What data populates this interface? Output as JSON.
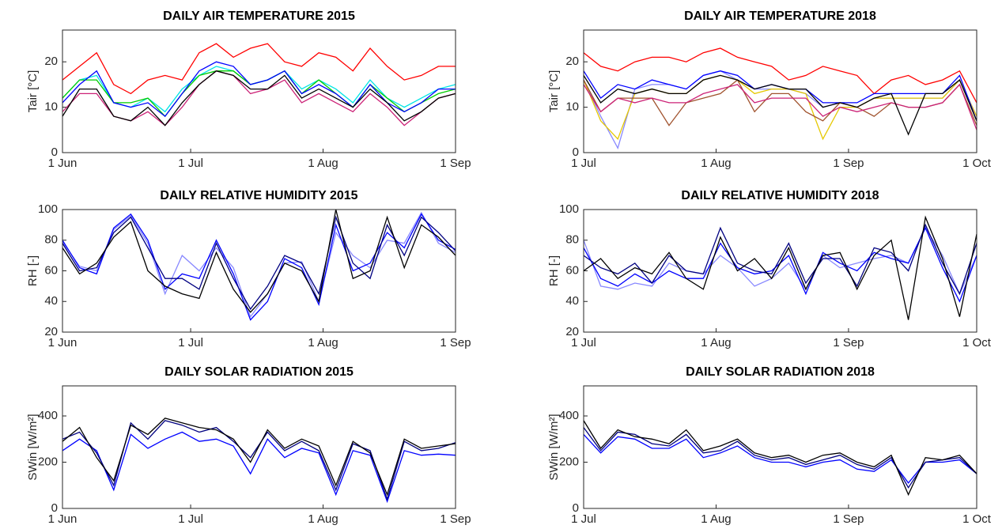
{
  "chart_data": [
    {
      "type": "line",
      "title": "DAILY AIR TEMPERATURE 2015",
      "ylabel": "Tair [°C]",
      "x": [
        0,
        4,
        8,
        12,
        16,
        20,
        24,
        28,
        32,
        36,
        40,
        44,
        48,
        52,
        56,
        60,
        64,
        68,
        72,
        76,
        80,
        84,
        88,
        92
      ],
      "xlim": [
        0,
        92
      ],
      "xticks": [
        {
          "value": 0,
          "label": "1 Jun"
        },
        {
          "value": 30,
          "label": "1 Jul"
        },
        {
          "value": 61,
          "label": "1 Aug"
        },
        {
          "value": 92,
          "label": "1 Sep"
        }
      ],
      "ylim": [
        0,
        27
      ],
      "yticks": [
        0,
        10,
        20
      ],
      "series": [
        {
          "color": "#ff0000",
          "values": [
            16,
            19,
            22,
            15,
            13,
            16,
            17,
            16,
            22,
            24,
            21,
            23,
            24,
            20,
            19,
            22,
            21,
            18,
            23,
            19,
            16,
            17,
            19,
            19
          ]
        },
        {
          "color": "#00e5e5",
          "values": [
            12,
            16,
            17,
            11,
            10,
            12,
            9,
            14,
            17,
            19,
            18,
            15,
            16,
            18,
            14,
            16,
            14,
            11,
            16,
            12,
            10,
            12,
            14,
            15
          ]
        },
        {
          "color": "#00cc00",
          "values": [
            12,
            16,
            16,
            11,
            11,
            12,
            8,
            13,
            17,
            18,
            18,
            15,
            16,
            18,
            13,
            16,
            13,
            10,
            15,
            12,
            9,
            11,
            13,
            14
          ]
        },
        {
          "color": "#0000ff",
          "values": [
            11,
            15,
            18,
            11,
            10,
            11,
            8,
            13,
            18,
            20,
            19,
            15,
            16,
            18,
            13,
            15,
            13,
            10,
            15,
            11,
            9,
            11,
            14,
            14
          ]
        },
        {
          "color": "#cc2277",
          "values": [
            9,
            13,
            13,
            8,
            7,
            9,
            6,
            10,
            15,
            18,
            17,
            13,
            14,
            16,
            11,
            13,
            11,
            9,
            13,
            10,
            6,
            9,
            12,
            13
          ]
        },
        {
          "color": "#000000",
          "values": [
            8,
            14,
            14,
            8,
            7,
            10,
            6,
            11,
            15,
            18,
            17,
            14,
            14,
            17,
            12,
            14,
            12,
            10,
            14,
            11,
            7,
            9,
            12,
            13
          ]
        }
      ]
    },
    {
      "type": "line",
      "title": "DAILY AIR TEMPERATURE 2018",
      "ylabel": "Tair [°C]",
      "x": [
        0,
        4,
        8,
        12,
        16,
        20,
        24,
        28,
        32,
        36,
        40,
        44,
        48,
        52,
        56,
        60,
        64,
        68,
        72,
        76,
        80,
        84,
        88,
        92
      ],
      "xlim": [
        0,
        92
      ],
      "xticks": [
        {
          "value": 0,
          "label": "1 Jul"
        },
        {
          "value": 31,
          "label": "1 Aug"
        },
        {
          "value": 62,
          "label": "1 Sep"
        },
        {
          "value": 92,
          "label": "1 Oct"
        }
      ],
      "ylim": [
        0,
        27
      ],
      "yticks": [
        0,
        10,
        20
      ],
      "series": [
        {
          "color": "#ff0000",
          "values": [
            22,
            19,
            18,
            20,
            21,
            21,
            20,
            22,
            23,
            21,
            20,
            19,
            16,
            17,
            19,
            18,
            17,
            13,
            16,
            17,
            15,
            16,
            18,
            11
          ]
        },
        {
          "color": "#8888ff",
          "values": [
            16,
            8,
            1,
            14,
            15,
            15,
            14,
            17,
            18,
            16,
            14,
            14,
            14,
            13,
            10,
            11,
            10,
            12,
            12,
            12,
            12,
            12,
            16,
            8
          ]
        },
        {
          "color": "#e5c800",
          "values": [
            16,
            7,
            3,
            13,
            14,
            13,
            13,
            16,
            17,
            16,
            13,
            14,
            14,
            13,
            3,
            10,
            10,
            12,
            12,
            12,
            12,
            12,
            16,
            8
          ]
        },
        {
          "color": "#a0522d",
          "values": [
            16,
            9,
            12,
            12,
            12,
            6,
            11,
            12,
            13,
            16,
            9,
            13,
            13,
            9,
            7,
            11,
            10,
            8,
            11,
            10,
            10,
            11,
            15,
            6
          ]
        },
        {
          "color": "#cc2277",
          "values": [
            15,
            9,
            12,
            11,
            12,
            11,
            11,
            13,
            14,
            15,
            11,
            12,
            12,
            12,
            8,
            10,
            9,
            10,
            11,
            10,
            10,
            11,
            15,
            5
          ]
        },
        {
          "color": "#0000ff",
          "values": [
            18,
            12,
            15,
            14,
            16,
            15,
            14,
            17,
            18,
            17,
            14,
            15,
            14,
            14,
            11,
            11,
            11,
            13,
            13,
            13,
            13,
            13,
            17,
            7
          ]
        },
        {
          "color": "#000000",
          "values": [
            17,
            11,
            14,
            13,
            14,
            13,
            13,
            16,
            17,
            16,
            14,
            15,
            14,
            14,
            10,
            11,
            10,
            12,
            13,
            4,
            13,
            13,
            16,
            7
          ]
        }
      ]
    },
    {
      "type": "line",
      "title": "DAILY RELATIVE HUMIDITY 2015",
      "ylabel": "RH [-]",
      "x": [
        0,
        4,
        8,
        12,
        16,
        20,
        24,
        28,
        32,
        36,
        40,
        44,
        48,
        52,
        56,
        60,
        64,
        68,
        72,
        76,
        80,
        84,
        88,
        92
      ],
      "xlim": [
        0,
        92
      ],
      "xticks": [
        {
          "value": 0,
          "label": "1 Jun"
        },
        {
          "value": 30,
          "label": "1 Jul"
        },
        {
          "value": 61,
          "label": "1 Aug"
        },
        {
          "value": 92,
          "label": "1 Sep"
        }
      ],
      "ylim": [
        20,
        100
      ],
      "yticks": [
        20,
        40,
        60,
        80,
        100
      ],
      "series": [
        {
          "color": "#8888ff",
          "values": [
            79,
            63,
            60,
            87,
            96,
            78,
            45,
            70,
            60,
            75,
            62,
            30,
            45,
            65,
            66,
            40,
            85,
            70,
            62,
            80,
            78,
            98,
            78,
            72
          ]
        },
        {
          "color": "#0000ff",
          "values": [
            80,
            62,
            58,
            88,
            97,
            80,
            48,
            58,
            55,
            80,
            58,
            28,
            40,
            68,
            62,
            38,
            90,
            60,
            65,
            85,
            75,
            97,
            80,
            74
          ]
        },
        {
          "color": "#000080",
          "values": [
            78,
            60,
            62,
            85,
            95,
            75,
            55,
            55,
            48,
            78,
            55,
            35,
            50,
            70,
            65,
            45,
            95,
            65,
            55,
            90,
            70,
            95,
            85,
            73
          ]
        },
        {
          "color": "#000000",
          "values": [
            75,
            58,
            65,
            82,
            92,
            60,
            50,
            45,
            42,
            72,
            48,
            33,
            45,
            65,
            60,
            40,
            100,
            55,
            60,
            95,
            62,
            90,
            82,
            70
          ]
        }
      ]
    },
    {
      "type": "line",
      "title": "DAILY RELATIVE HUMIDITY 2018",
      "ylabel": "RH [-]",
      "x": [
        0,
        4,
        8,
        12,
        16,
        20,
        24,
        28,
        32,
        36,
        40,
        44,
        48,
        52,
        56,
        60,
        64,
        68,
        72,
        76,
        80,
        84,
        88,
        92
      ],
      "xlim": [
        0,
        92
      ],
      "xticks": [
        {
          "value": 0,
          "label": "1 Jul"
        },
        {
          "value": 31,
          "label": "1 Aug"
        },
        {
          "value": 62,
          "label": "1 Sep"
        },
        {
          "value": 92,
          "label": "1 Oct"
        }
      ],
      "ylim": [
        20,
        100
      ],
      "yticks": [
        20,
        40,
        60,
        80,
        100
      ],
      "series": [
        {
          "color": "#8888ff",
          "values": [
            80,
            50,
            48,
            52,
            50,
            65,
            60,
            58,
            70,
            62,
            50,
            55,
            65,
            48,
            70,
            62,
            65,
            68,
            70,
            65,
            88,
            70,
            45,
            70
          ]
        },
        {
          "color": "#0000ff",
          "values": [
            75,
            55,
            50,
            58,
            52,
            60,
            55,
            55,
            78,
            62,
            58,
            60,
            70,
            45,
            72,
            65,
            60,
            72,
            68,
            65,
            88,
            62,
            40,
            70
          ]
        },
        {
          "color": "#000080",
          "values": [
            70,
            62,
            58,
            65,
            52,
            70,
            60,
            58,
            88,
            65,
            60,
            58,
            78,
            52,
            68,
            68,
            50,
            75,
            72,
            60,
            90,
            65,
            45,
            78
          ]
        },
        {
          "color": "#000000",
          "values": [
            60,
            68,
            55,
            62,
            58,
            72,
            55,
            48,
            82,
            60,
            68,
            55,
            75,
            48,
            70,
            72,
            48,
            70,
            80,
            28,
            95,
            68,
            30,
            84
          ]
        }
      ]
    },
    {
      "type": "line",
      "title": "DAILY SOLAR RADIATION 2015",
      "ylabel": "SWin [W/m²]",
      "x": [
        0,
        4,
        8,
        12,
        16,
        20,
        24,
        28,
        32,
        36,
        40,
        44,
        48,
        52,
        56,
        60,
        64,
        68,
        72,
        76,
        80,
        84,
        88,
        92
      ],
      "xlim": [
        0,
        92
      ],
      "xticks": [
        {
          "value": 0,
          "label": "1 Jun"
        },
        {
          "value": 30,
          "label": "1 Jul"
        },
        {
          "value": 61,
          "label": "1 Aug"
        },
        {
          "value": 92,
          "label": "1 Sep"
        }
      ],
      "ylim": [
        0,
        530
      ],
      "yticks": [
        0,
        200,
        400
      ],
      "series": [
        {
          "color": "#0000ff",
          "values": [
            250,
            300,
            250,
            80,
            320,
            260,
            300,
            330,
            290,
            300,
            270,
            150,
            300,
            220,
            260,
            240,
            60,
            250,
            230,
            30,
            250,
            230,
            235,
            230
          ]
        },
        {
          "color": "#000080",
          "values": [
            300,
            330,
            240,
            100,
            370,
            300,
            380,
            360,
            330,
            350,
            290,
            220,
            330,
            250,
            290,
            250,
            80,
            280,
            250,
            40,
            290,
            250,
            260,
            285
          ]
        },
        {
          "color": "#000000",
          "values": [
            290,
            350,
            220,
            120,
            360,
            320,
            390,
            370,
            350,
            340,
            300,
            200,
            340,
            260,
            300,
            270,
            100,
            290,
            240,
            60,
            300,
            260,
            270,
            280
          ]
        }
      ]
    },
    {
      "type": "line",
      "title": "DAILY SOLAR RADIATION 2018",
      "ylabel": "SWin [W/m²]",
      "x": [
        0,
        4,
        8,
        12,
        16,
        20,
        24,
        28,
        32,
        36,
        40,
        44,
        48,
        52,
        56,
        60,
        64,
        68,
        72,
        76,
        80,
        84,
        88,
        92
      ],
      "xlim": [
        0,
        92
      ],
      "xticks": [
        {
          "value": 0,
          "label": "1 Jul"
        },
        {
          "value": 31,
          "label": "1 Aug"
        },
        {
          "value": 62,
          "label": "1 Sep"
        },
        {
          "value": 92,
          "label": "1 Oct"
        }
      ],
      "ylim": [
        0,
        530
      ],
      "yticks": [
        0,
        200,
        400
      ],
      "series": [
        {
          "color": "#0000ff",
          "values": [
            320,
            240,
            310,
            300,
            260,
            260,
            300,
            220,
            240,
            270,
            220,
            200,
            200,
            180,
            200,
            210,
            170,
            160,
            210,
            110,
            200,
            200,
            210,
            150
          ]
        },
        {
          "color": "#000080",
          "values": [
            350,
            250,
            330,
            320,
            280,
            270,
            320,
            240,
            250,
            290,
            230,
            210,
            220,
            190,
            210,
            230,
            190,
            170,
            220,
            90,
            200,
            210,
            220,
            150
          ]
        },
        {
          "color": "#000000",
          "values": [
            380,
            260,
            340,
            310,
            300,
            280,
            340,
            250,
            270,
            300,
            240,
            220,
            230,
            200,
            230,
            240,
            200,
            180,
            230,
            60,
            220,
            210,
            230,
            150
          ]
        }
      ]
    }
  ]
}
